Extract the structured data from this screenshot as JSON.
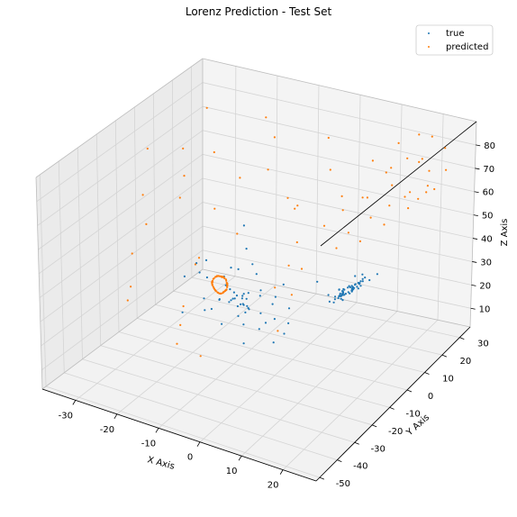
{
  "chart_data": {
    "type": "scatter",
    "projection": "3d",
    "title": "Lorenz Prediction - Test Set",
    "xlabel": "X Axis",
    "ylabel": "Y Axis",
    "zlabel": "Z Axis",
    "xlim": [
      -38,
      28
    ],
    "ylim": [
      -52,
      36
    ],
    "zlim": [
      2,
      90
    ],
    "xticks": [
      -30,
      -20,
      -10,
      0,
      10,
      20
    ],
    "yticks": [
      -50,
      -40,
      -30,
      -20,
      -10,
      0,
      10,
      20,
      30
    ],
    "zticks": [
      10,
      20,
      30,
      40,
      50,
      60,
      70,
      80
    ],
    "grid": true,
    "legend_position": "top-right",
    "series": [
      {
        "name": "true",
        "color": "#1f77b4",
        "points": [
          [
            -8.0,
            -9.5,
            27.1
          ],
          [
            -12.4,
            -16.8,
            27.5
          ],
          [
            -16.1,
            -14.9,
            39.6
          ],
          [
            -11.2,
            -4.8,
            37.1
          ],
          [
            -6.3,
            -3.9,
            27.8
          ],
          [
            -7.4,
            -9.6,
            24.0
          ],
          [
            -11.5,
            -14.6,
            30.3
          ],
          [
            -12.8,
            -9.0,
            35.9
          ],
          [
            -8.4,
            -5.6,
            29.1
          ],
          [
            -7.1,
            -8.2,
            24.6
          ],
          [
            -10.0,
            -12.6,
            28.9
          ],
          [
            -11.9,
            -10.1,
            33.4
          ],
          [
            -9.0,
            -6.8,
            29.2
          ],
          [
            -7.5,
            -8.4,
            25.8
          ],
          [
            -9.9,
            -11.8,
            29.2
          ],
          [
            -11.0,
            -9.8,
            32.0
          ],
          [
            -9.1,
            -7.3,
            28.6
          ],
          [
            -8.1,
            -8.9,
            26.3
          ],
          [
            -9.8,
            -11.0,
            29.4
          ],
          [
            -10.2,
            -9.4,
            30.8
          ],
          [
            -8.9,
            -7.9,
            28.0
          ],
          [
            -8.6,
            -9.5,
            26.7
          ],
          [
            -9.6,
            -10.4,
            29.2
          ],
          [
            -9.7,
            -9.0,
            29.5
          ],
          [
            -8.3,
            -6.9,
            27.5
          ],
          [
            -7.4,
            -8.0,
            24.8
          ],
          [
            -8.8,
            -10.6,
            26.5
          ],
          [
            -11.6,
            -14.2,
            30.3
          ],
          [
            -14.8,
            -13.8,
            37.5
          ],
          [
            -12.4,
            -6.1,
            38.0
          ],
          [
            -6.6,
            -2.9,
            29.3
          ],
          [
            -5.2,
            -6.1,
            22.5
          ],
          [
            -8.1,
            -11.9,
            23.6
          ],
          [
            -13.7,
            -18.0,
            31.9
          ],
          [
            -16.3,
            -10.8,
            42.1
          ],
          [
            -8.2,
            -1.6,
            34.5
          ],
          [
            -3.9,
            -2.5,
            24.6
          ],
          [
            -4.1,
            -5.8,
            18.9
          ],
          [
            -7.3,
            -10.8,
            19.9
          ],
          [
            -13.1,
            -19.0,
            28.0
          ],
          [
            -17.3,
            -13.9,
            42.3
          ],
          [
            -9.4,
            -1.1,
            37.7
          ],
          [
            -3.7,
            -1.3,
            26.9
          ],
          [
            -2.8,
            -3.8,
            19.8
          ],
          [
            -4.8,
            -7.8,
            17.3
          ],
          [
            -10.2,
            -16.3,
            22.1
          ],
          [
            -17.6,
            -19.7,
            40.1
          ],
          [
            -11.4,
            0.1,
            42.5
          ],
          [
            -3.0,
            1.5,
            30.5
          ],
          [
            -1.0,
            0.1,
            22.5
          ],
          [
            -0.7,
            -1.0,
            17.2
          ],
          [
            -1.2,
            -2.1,
            13.4
          ],
          [
            -2.6,
            -4.8,
            10.9
          ],
          [
            -6.5,
            -12.5,
            13.6
          ],
          [
            -15.4,
            -26.0,
            30.2
          ],
          [
            -13.4,
            3.3,
            49.3
          ],
          [
            2.3,
            8.1,
            29.8
          ],
          [
            8.4,
            12.3,
            24.8
          ],
          [
            13.7,
            15.4,
            33.0
          ],
          [
            12.0,
            6.7,
            37.1
          ],
          [
            6.7,
            4.2,
            28.7
          ],
          [
            6.5,
            7.8,
            23.2
          ],
          [
            10.1,
            13.2,
            27.0
          ],
          [
            12.8,
            10.5,
            34.4
          ],
          [
            8.7,
            5.6,
            30.9
          ],
          [
            6.9,
            7.5,
            24.9
          ],
          [
            9.2,
            11.8,
            26.7
          ],
          [
            11.7,
            10.7,
            32.3
          ],
          [
            9.2,
            6.8,
            30.5
          ],
          [
            7.6,
            8.1,
            26.0
          ],
          [
            9.4,
            11.2,
            27.4
          ],
          [
            10.8,
            9.9,
            31.2
          ],
          [
            8.9,
            7.2,
            29.0
          ],
          [
            8.0,
            8.8,
            26.1
          ],
          [
            9.6,
            10.8,
            28.4
          ],
          [
            10.1,
            9.4,
            30.5
          ],
          [
            8.8,
            7.7,
            28.2
          ],
          [
            8.7,
            9.4,
            26.7
          ],
          [
            9.9,
            10.6,
            29.2
          ],
          [
            9.9,
            9.0,
            30.1
          ],
          [
            8.6,
            7.6,
            27.8
          ],
          [
            8.4,
            9.3,
            26.2
          ],
          [
            9.9,
            11.2,
            28.4
          ],
          [
            10.7,
            9.8,
            31.0
          ],
          [
            8.9,
            7.3,
            29.1
          ],
          [
            7.9,
            8.5,
            25.9
          ],
          [
            9.6,
            11.5,
            27.5
          ],
          [
            11.3,
            10.4,
            31.6
          ],
          [
            9.3,
            7.1,
            30.1
          ],
          [
            7.8,
            8.1,
            26.2
          ],
          [
            9.3,
            11.3,
            27.0
          ],
          [
            11.3,
            11.1,
            31.1
          ],
          [
            9.9,
            7.6,
            30.9
          ],
          [
            8.0,
            7.7,
            27.0
          ],
          [
            8.8,
            10.6,
            26.6
          ],
          [
            10.9,
            11.8,
            30.1
          ],
          [
            10.6,
            8.3,
            31.4
          ],
          [
            8.3,
            7.2,
            28.0
          ],
          [
            8.1,
            9.5,
            25.9
          ],
          [
            10.2,
            12.2,
            28.4
          ],
          [
            11.6,
            9.6,
            32.3
          ],
          [
            9.0,
            6.7,
            29.7
          ],
          [
            7.4,
            8.2,
            25.1
          ],
          [
            9.1,
            11.9,
            26.2
          ],
          [
            11.7,
            11.9,
            31.5
          ],
          [
            10.4,
            7.2,
            32.0
          ],
          [
            7.4,
            6.4,
            26.9
          ],
          [
            7.5,
            9.6,
            24.0
          ],
          [
            10.5,
            13.6,
            28.0
          ],
          [
            12.6,
            9.7,
            34.2
          ],
          [
            8.9,
            5.1,
            31.2
          ],
          [
            6.2,
            6.1,
            24.5
          ],
          [
            7.5,
            10.5,
            22.9
          ],
          [
            11.9,
            15.2,
            29.9
          ],
          [
            13.3,
            7.8,
            37.6
          ]
        ]
      },
      {
        "name": "predicted",
        "color": "#ff7f0e",
        "points": [
          [
            -13.2,
            -14.6,
            37.1
          ],
          [
            -12.6,
            -10.7,
            36.7
          ],
          [
            -11.1,
            -11.8,
            32.9
          ],
          [
            -12.4,
            -14.6,
            33.8
          ],
          [
            -13.4,
            -11.8,
            37.3
          ],
          [
            -11.4,
            -10.6,
            34.4
          ],
          [
            -11.5,
            -13.9,
            32.4
          ],
          [
            -13.7,
            -13.6,
            36.0
          ],
          [
            -12.3,
            -10.3,
            36.5
          ],
          [
            -11.0,
            -12.5,
            32.9
          ],
          [
            -12.8,
            -14.6,
            34.5
          ],
          [
            -13.2,
            -11.3,
            37.3
          ],
          [
            -11.2,
            -11.0,
            33.8
          ],
          [
            -11.9,
            -14.4,
            32.9
          ],
          [
            -13.7,
            -12.9,
            36.8
          ],
          [
            -11.8,
            -10.2,
            35.8
          ],
          [
            -11.2,
            -13.1,
            32.7
          ],
          [
            -13.3,
            -14.3,
            35.3
          ],
          [
            -12.8,
            -10.8,
            37.0
          ],
          [
            -11.0,
            -11.7,
            33.0
          ],
          [
            -12.3,
            -14.6,
            33.5
          ],
          [
            -13.5,
            -12.2,
            37.3
          ],
          [
            -11.5,
            -10.5,
            34.8
          ],
          [
            -11.4,
            -13.7,
            32.4
          ],
          [
            -13.6,
            -13.8,
            35.7
          ],
          [
            -12.4,
            -10.4,
            36.8
          ],
          [
            -11.0,
            -12.3,
            33.0
          ],
          [
            -12.7,
            -14.6,
            34.2
          ],
          [
            -13.4,
            -11.5,
            37.4
          ],
          [
            -11.2,
            -10.8,
            34.1
          ],
          [
            -11.7,
            -14.2,
            32.6
          ],
          [
            -13.7,
            -13.3,
            36.3
          ],
          [
            -12.1,
            -10.3,
            36.2
          ],
          [
            -11.1,
            -12.8,
            32.8
          ],
          [
            -13.0,
            -14.5,
            34.9
          ],
          [
            -13.0,
            -11.1,
            37.2
          ],
          [
            -11.1,
            -11.2,
            33.6
          ],
          [
            -12.0,
            -14.5,
            33.1
          ],
          [
            -13.6,
            -12.7,
            37.0
          ],
          [
            -11.7,
            -10.3,
            35.4
          ],
          [
            -11.2,
            -13.3,
            32.5
          ],
          [
            -13.4,
            -14.1,
            35.5
          ],
          [
            -12.6,
            -10.6,
            36.9
          ],
          [
            -11.0,
            -11.9,
            32.9
          ],
          [
            -12.5,
            -14.6,
            33.8
          ],
          [
            -13.3,
            -11.9,
            37.4
          ],
          [
            -11.3,
            -10.6,
            34.6
          ],
          [
            -11.6,
            -14.0,
            32.5
          ],
          [
            -13.6,
            -13.5,
            36.0
          ],
          [
            -12.3,
            -10.4,
            36.6
          ],
          [
            -31.0,
            10.0,
            70.0
          ],
          [
            -28.0,
            20.0,
            64.0
          ],
          [
            -34.0,
            -5.0,
            58.0
          ],
          [
            -24.0,
            25.0,
            52.0
          ],
          [
            -30.0,
            -20.0,
            44.0
          ],
          [
            -20.0,
            30.0,
            76.0
          ],
          [
            -35.0,
            0.0,
            74.0
          ],
          [
            -15.0,
            20.0,
            62.0
          ],
          [
            -26.0,
            -30.0,
            38.0
          ],
          [
            -10.0,
            25.0,
            46.0
          ],
          [
            -33.0,
            15.0,
            55.0
          ],
          [
            -22.0,
            -12.0,
            66.0
          ],
          [
            -18.0,
            10.0,
            40.0
          ],
          [
            -29.0,
            -25.0,
            28.0
          ],
          [
            -12.0,
            -35.0,
            32.0
          ],
          [
            -5.0,
            -40.0,
            26.0
          ],
          [
            -25.0,
            5.0,
            30.0
          ],
          [
            -20.0,
            -15.0,
            24.0
          ],
          [
            -15.0,
            -30.0,
            20.0
          ],
          [
            -8.0,
            15.0,
            56.0
          ],
          [
            -31.0,
            -10.0,
            50.0
          ],
          [
            -17.0,
            28.0,
            70.0
          ],
          [
            -27.0,
            18.0,
            42.0
          ],
          [
            -14.0,
            -22.0,
            48.0
          ],
          [
            -32.0,
            25.0,
            78.0
          ],
          [
            -2.0,
            5.0,
            60.0
          ],
          [
            0.0,
            20.0,
            68.0
          ],
          [
            3.0,
            10.0,
            52.0
          ],
          [
            -4.0,
            28.0,
            75.0
          ],
          [
            1.0,
            -5.0,
            44.0
          ],
          [
            2.0,
            0.0,
            40.0
          ],
          [
            -1.0,
            -8.0,
            36.0
          ],
          [
            0.5,
            -2.0,
            30.0
          ],
          [
            1.5,
            -12.0,
            22.0
          ],
          [
            -0.5,
            3.0,
            48.0
          ],
          [
            5.0,
            15.0,
            62.0
          ],
          [
            8.0,
            25.0,
            72.0
          ],
          [
            12.0,
            30.0,
            78.0
          ],
          [
            16.0,
            32.0,
            82.0
          ],
          [
            20.0,
            30.0,
            84.0
          ],
          [
            24.0,
            28.0,
            82.0
          ],
          [
            26.0,
            24.0,
            76.0
          ],
          [
            25.0,
            20.0,
            70.0
          ],
          [
            22.0,
            18.0,
            66.0
          ],
          [
            18.0,
            20.0,
            64.0
          ],
          [
            14.0,
            22.0,
            66.0
          ],
          [
            12.0,
            26.0,
            70.0
          ],
          [
            15.0,
            28.0,
            74.0
          ],
          [
            19.0,
            27.0,
            76.0
          ],
          [
            22.0,
            24.0,
            74.0
          ],
          [
            23.0,
            21.0,
            70.0
          ],
          [
            20.0,
            18.0,
            68.0
          ],
          [
            16.0,
            16.0,
            62.0
          ],
          [
            12.0,
            15.0,
            56.0
          ],
          [
            8.0,
            12.0,
            50.0
          ],
          [
            6.0,
            10.0,
            44.0
          ],
          [
            10.0,
            14.0,
            46.0
          ],
          [
            14.0,
            18.0,
            52.0
          ],
          [
            18.0,
            22.0,
            58.0
          ],
          [
            21.0,
            25.0,
            64.0
          ],
          [
            17.0,
            30.0,
            72.0
          ],
          [
            10.0,
            28.0,
            66.0
          ],
          [
            7.0,
            22.0,
            58.0
          ],
          [
            4.0,
            18.0,
            54.0
          ],
          [
            9.0,
            20.0,
            60.0
          ]
        ]
      }
    ]
  }
}
